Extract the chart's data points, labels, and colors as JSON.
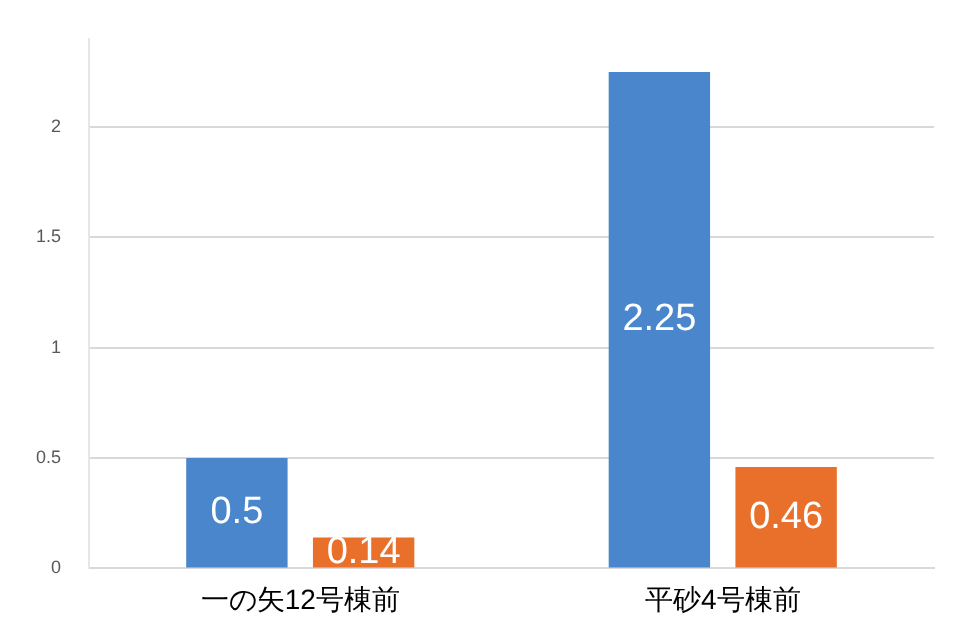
{
  "chart_data": {
    "type": "bar",
    "categories": [
      "一の矢12号棟前",
      "平砂4号棟前"
    ],
    "series": [
      {
        "color": "#4a86cc",
        "values": [
          0.5,
          2.25
        ]
      },
      {
        "color": "#e8702a",
        "values": [
          0.14,
          0.46
        ]
      }
    ],
    "ylim": [
      0,
      2.4
    ],
    "yticks": [
      0,
      0.5,
      1,
      1.5,
      2
    ],
    "grid": "y",
    "legend": false,
    "data_labels": true
  }
}
